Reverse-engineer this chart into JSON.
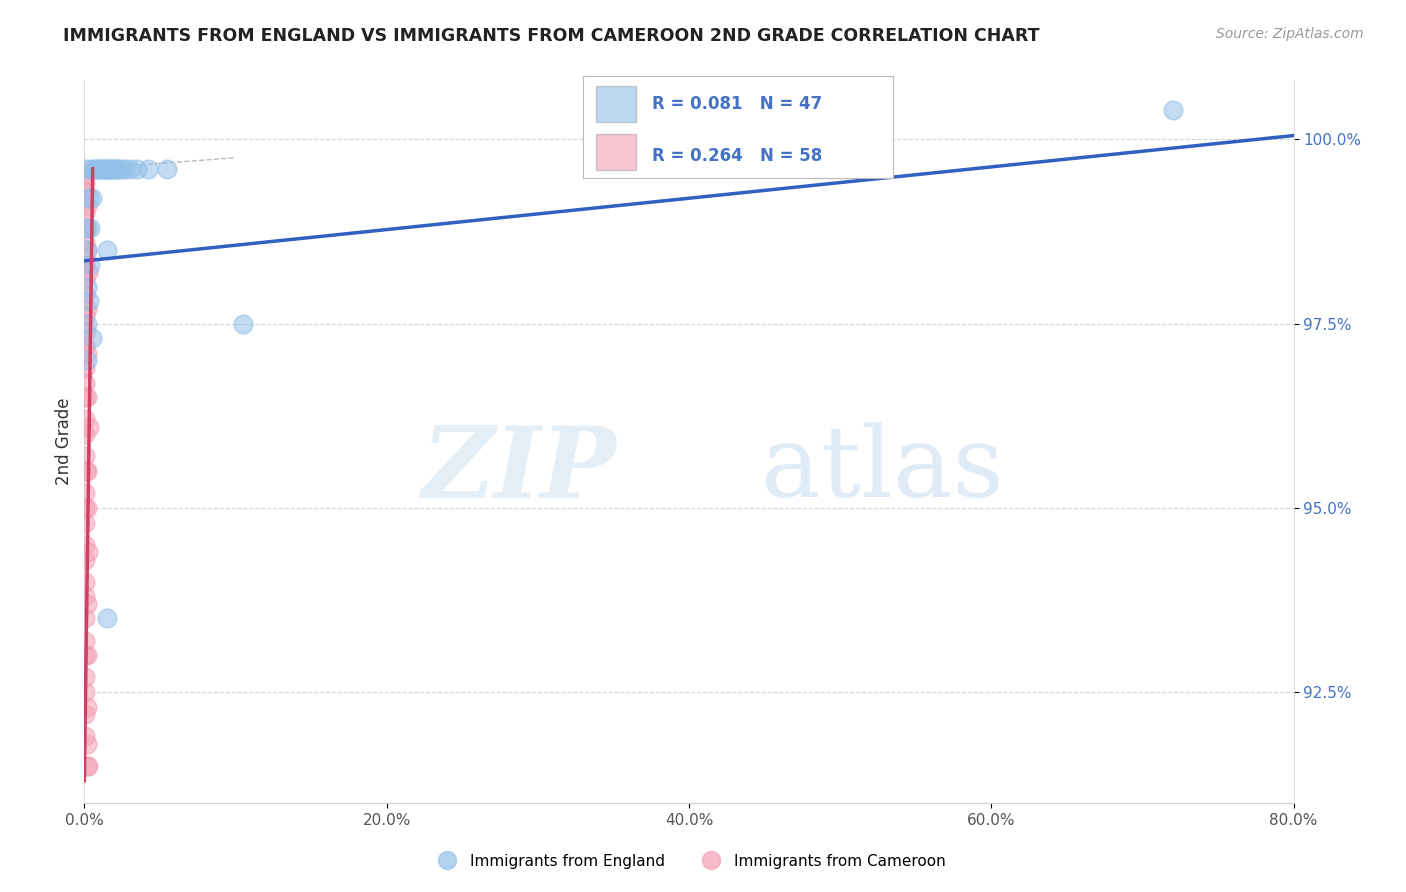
{
  "title": "IMMIGRANTS FROM ENGLAND VS IMMIGRANTS FROM CAMEROON 2ND GRADE CORRELATION CHART",
  "source": "Source: ZipAtlas.com",
  "ylabel": "2nd Grade",
  "xlim": [
    0.0,
    80.0
  ],
  "ylim": [
    91.0,
    100.8
  ],
  "xticks": [
    0.0,
    20.0,
    40.0,
    60.0,
    80.0
  ],
  "yticks_right": [
    92.5,
    95.0,
    97.5,
    100.0
  ],
  "england_color": "#92c0e8",
  "cameroon_color": "#f4a0b5",
  "england_R": 0.081,
  "england_N": 47,
  "cameroon_R": 0.264,
  "cameroon_N": 58,
  "england_scatter": [
    [
      0.2,
      99.6
    ],
    [
      0.5,
      99.6
    ],
    [
      0.7,
      99.6
    ],
    [
      0.85,
      99.6
    ],
    [
      1.0,
      99.6
    ],
    [
      1.1,
      99.6
    ],
    [
      1.2,
      99.6
    ],
    [
      1.3,
      99.6
    ],
    [
      1.4,
      99.6
    ],
    [
      1.5,
      99.6
    ],
    [
      1.6,
      99.6
    ],
    [
      1.7,
      99.6
    ],
    [
      1.8,
      99.6
    ],
    [
      1.9,
      99.6
    ],
    [
      2.0,
      99.6
    ],
    [
      2.1,
      99.6
    ],
    [
      2.2,
      99.6
    ],
    [
      2.4,
      99.6
    ],
    [
      2.7,
      99.6
    ],
    [
      3.0,
      99.6
    ],
    [
      3.5,
      99.6
    ],
    [
      4.2,
      99.6
    ],
    [
      5.5,
      99.6
    ],
    [
      0.3,
      99.2
    ],
    [
      0.5,
      99.2
    ],
    [
      0.2,
      98.8
    ],
    [
      0.4,
      98.8
    ],
    [
      0.2,
      98.5
    ],
    [
      0.4,
      98.3
    ],
    [
      0.15,
      98.0
    ],
    [
      0.3,
      97.8
    ],
    [
      0.2,
      97.5
    ],
    [
      0.5,
      97.3
    ],
    [
      0.15,
      97.0
    ],
    [
      1.5,
      98.5
    ],
    [
      10.5,
      97.5
    ],
    [
      72.0,
      100.4
    ],
    [
      1.5,
      93.5
    ]
  ],
  "cameroon_scatter": [
    [
      0.04,
      99.5
    ],
    [
      0.06,
      99.3
    ],
    [
      0.04,
      99.0
    ],
    [
      0.08,
      98.8
    ],
    [
      0.05,
      98.6
    ],
    [
      0.07,
      98.3
    ],
    [
      0.04,
      98.1
    ],
    [
      0.06,
      97.9
    ],
    [
      0.05,
      97.6
    ],
    [
      0.08,
      97.4
    ],
    [
      0.04,
      97.2
    ],
    [
      0.06,
      96.9
    ],
    [
      0.05,
      96.7
    ],
    [
      0.07,
      96.5
    ],
    [
      0.04,
      96.2
    ],
    [
      0.06,
      96.0
    ],
    [
      0.05,
      95.7
    ],
    [
      0.08,
      95.5
    ],
    [
      0.04,
      95.2
    ],
    [
      0.06,
      95.0
    ],
    [
      0.04,
      94.8
    ],
    [
      0.07,
      94.5
    ],
    [
      0.05,
      94.3
    ],
    [
      0.04,
      94.0
    ],
    [
      0.06,
      93.8
    ],
    [
      0.05,
      93.5
    ],
    [
      0.04,
      93.2
    ],
    [
      0.06,
      93.0
    ],
    [
      0.05,
      92.7
    ],
    [
      0.04,
      92.5
    ],
    [
      0.06,
      92.2
    ],
    [
      0.05,
      91.9
    ],
    [
      0.04,
      99.4
    ],
    [
      0.15,
      99.1
    ],
    [
      0.2,
      98.5
    ],
    [
      0.25,
      98.2
    ],
    [
      0.15,
      97.7
    ],
    [
      0.2,
      97.1
    ],
    [
      0.15,
      96.5
    ],
    [
      0.3,
      96.1
    ],
    [
      0.2,
      95.5
    ],
    [
      0.15,
      95.0
    ],
    [
      0.25,
      94.4
    ],
    [
      0.2,
      93.7
    ],
    [
      0.15,
      93.0
    ],
    [
      0.2,
      92.3
    ],
    [
      0.15,
      91.8
    ],
    [
      0.15,
      91.5
    ],
    [
      0.25,
      91.5
    ]
  ],
  "england_trend_x": [
    0.0,
    80.0
  ],
  "england_trend_y": [
    98.35,
    100.05
  ],
  "cameroon_trend_x": [
    0.0,
    0.55
  ],
  "cameroon_trend_y": [
    91.3,
    99.6
  ],
  "dashed_line_y": 99.6,
  "watermark_zip": "ZIP",
  "watermark_atlas": "atlas",
  "background_color": "#ffffff",
  "grid_color": "#d0d0d0",
  "legend_box_color": "#e8e8e8"
}
